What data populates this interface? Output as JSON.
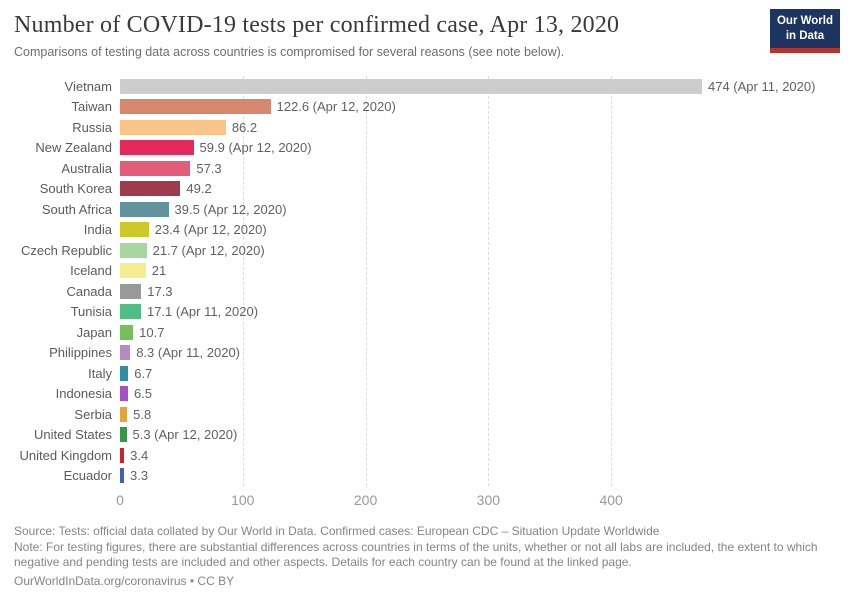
{
  "header": {
    "title": "Number of COVID-19 tests per confirmed case, Apr 13, 2020",
    "subtitle": "Comparisons of testing data across countries is compromised for several reasons (see note below).",
    "logo": {
      "line1": "Our World",
      "line2": "in Data"
    }
  },
  "chart_data": {
    "type": "bar",
    "orientation": "horizontal",
    "title": "Number of COVID-19 tests per confirmed case, Apr 13, 2020",
    "categories": [
      "Vietnam",
      "Taiwan",
      "Russia",
      "New Zealand",
      "Australia",
      "South Korea",
      "South Africa",
      "India",
      "Czech Republic",
      "Iceland",
      "Canada",
      "Tunisia",
      "Japan",
      "Philippines",
      "Italy",
      "Indonesia",
      "Serbia",
      "United States",
      "United Kingdom",
      "Ecuador"
    ],
    "values": [
      474,
      122.6,
      86.2,
      59.9,
      57.3,
      49.2,
      39.5,
      23.4,
      21.7,
      21,
      17.3,
      17.1,
      10.7,
      8.3,
      6.7,
      6.5,
      5.8,
      5.3,
      3.4,
      3.3
    ],
    "value_labels": [
      "474 (Apr 11, 2020)",
      "122.6 (Apr 12, 2020)",
      "86.2",
      "59.9 (Apr 12, 2020)",
      "57.3",
      "49.2",
      "39.5 (Apr 12, 2020)",
      "23.4 (Apr 12, 2020)",
      "21.7 (Apr 12, 2020)",
      "21",
      "17.3",
      "17.1 (Apr 11, 2020)",
      "10.7",
      "8.3 (Apr 11, 2020)",
      "6.7",
      "6.5",
      "5.8",
      "5.3 (Apr 12, 2020)",
      "3.4",
      "3.3"
    ],
    "bar_colors": [
      "#cdcdcd",
      "#d8876f",
      "#f8c488",
      "#e22a5b",
      "#e45c79",
      "#9e3c4d",
      "#62929e",
      "#cfc829",
      "#a7d6a0",
      "#f5eb90",
      "#999999",
      "#50bd83",
      "#76bf5c",
      "#b78ac4",
      "#2f8fa0",
      "#a451c1",
      "#e5a33c",
      "#35974a",
      "#cc2529",
      "#3f64ad"
    ],
    "xlabel": "",
    "ylabel": "",
    "xlim": [
      0,
      474
    ],
    "xticks": [
      0,
      100,
      200,
      300,
      400
    ],
    "grid": "vertical-dashed",
    "legend": "none"
  },
  "footer": {
    "source": "Source: Tests: official data collated by Our World in Data. Confirmed cases: European CDC – Situation Update Worldwide",
    "note": "Note: For testing figures, there are substantial differences across countries in terms of the units, whether or not all labs are included, the extent to which negative and pending tests are included and other aspects. Details for each country can be found at the linked page.",
    "citation_link": "OurWorldInData.org/coronavirus",
    "citation_suffix": " • CC BY"
  },
  "colors": {
    "logo_background": "#1d3360",
    "logo_accent": "#b5332b",
    "gridline": "#dcdcdc",
    "axis_text": "#999999",
    "label_text": "#5b5b5b",
    "footer_text": "#858585"
  }
}
